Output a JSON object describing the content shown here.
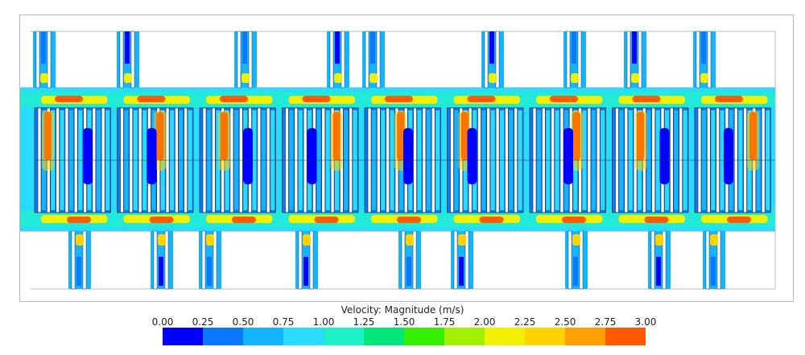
{
  "legend": {
    "title": "Velocity: Magnitude (m/s)",
    "ticks": [
      "0.00",
      "0.25",
      "0.50",
      "0.75",
      "1.00",
      "1.25",
      "1.50",
      "1.75",
      "2.00",
      "2.25",
      "2.50",
      "2.75",
      "3.00"
    ],
    "colors": [
      "#0000ff",
      "#0a78ff",
      "#14b4ff",
      "#28dcff",
      "#1ef0c8",
      "#00e678",
      "#32f000",
      "#a0f000",
      "#f0f000",
      "#ffd200",
      "#ffa000",
      "#ff5a00",
      "#ff0000"
    ]
  },
  "cells": 9,
  "bars_per_cell": 8
}
